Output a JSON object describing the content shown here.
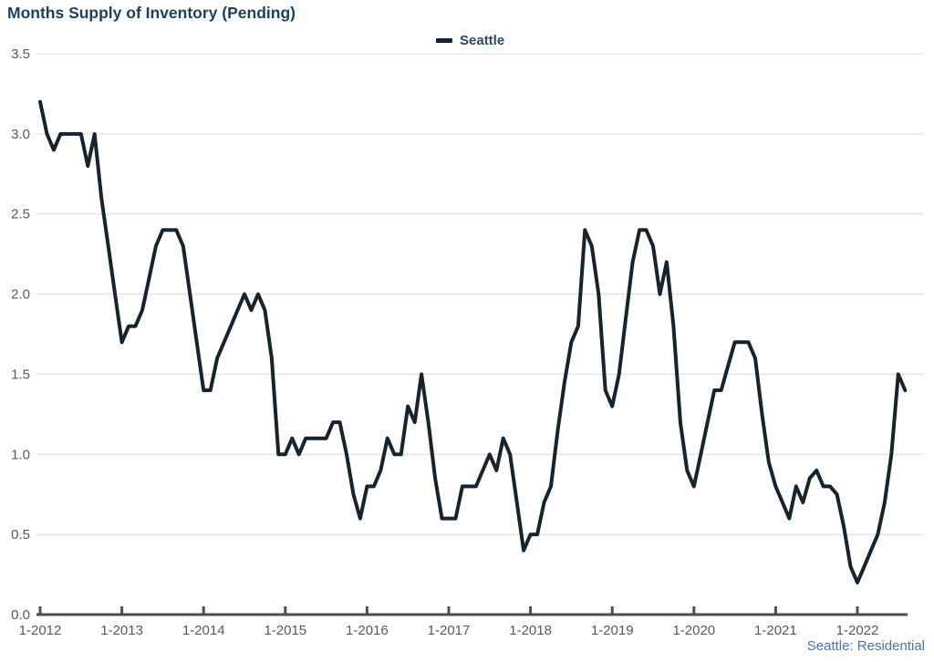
{
  "title": "Months Supply of Inventory (Pending)",
  "legend": {
    "label": "Seattle"
  },
  "footer": {
    "text": "Seattle: Residential"
  },
  "colors": {
    "title": "#1c4161",
    "legend_label": "#2c4b66",
    "line": "#16242e",
    "axis": "#4d4d4d",
    "grid": "#d9d9d9",
    "tick_label": "#595959",
    "footer": "#4377ac"
  },
  "chart_data": {
    "type": "line",
    "title": "Months Supply of Inventory (Pending)",
    "xlabel": "",
    "ylabel": "",
    "ylim": [
      0,
      3.5
    ],
    "y_tick_labels": [
      "0.0",
      "0.5",
      "1.0",
      "1.5",
      "2.0",
      "2.5",
      "3.0",
      "3.5"
    ],
    "x_tick_labels": [
      "1-2012",
      "1-2013",
      "1-2014",
      "1-2015",
      "1-2016",
      "1-2017",
      "1-2018",
      "1-2019",
      "1-2020",
      "1-2021",
      "1-2022"
    ],
    "x_tick_month_indices": [
      0,
      12,
      24,
      36,
      48,
      60,
      72,
      84,
      96,
      108,
      120
    ],
    "grid": "horizontal",
    "legend_position": "top-center",
    "series": [
      {
        "name": "Seattle",
        "start_month": "1-2012",
        "end_month": "8-2022",
        "frequency": "monthly",
        "values": [
          3.2,
          3.0,
          2.9,
          3.0,
          3.0,
          3.0,
          3.0,
          2.8,
          3.0,
          2.6,
          2.3,
          2.0,
          1.7,
          1.8,
          1.8,
          1.9,
          2.1,
          2.3,
          2.4,
          2.4,
          2.4,
          2.3,
          2.0,
          1.7,
          1.4,
          1.4,
          1.6,
          1.7,
          1.8,
          1.9,
          2.0,
          1.9,
          2.0,
          1.9,
          1.6,
          1.0,
          1.0,
          1.1,
          1.0,
          1.1,
          1.1,
          1.1,
          1.1,
          1.2,
          1.2,
          1.0,
          0.75,
          0.6,
          0.8,
          0.8,
          0.9,
          1.1,
          1.0,
          1.0,
          1.3,
          1.2,
          1.5,
          1.2,
          0.85,
          0.6,
          0.6,
          0.6,
          0.8,
          0.8,
          0.8,
          0.9,
          1.0,
          0.9,
          1.1,
          1.0,
          0.7,
          0.4,
          0.5,
          0.5,
          0.7,
          0.8,
          1.15,
          1.45,
          1.7,
          1.8,
          2.4,
          2.3,
          2.0,
          1.4,
          1.3,
          1.5,
          1.85,
          2.2,
          2.4,
          2.4,
          2.3,
          2.0,
          2.2,
          1.8,
          1.2,
          0.9,
          0.8,
          1.0,
          1.2,
          1.4,
          1.4,
          1.55,
          1.7,
          1.7,
          1.7,
          1.6,
          1.25,
          0.95,
          0.8,
          0.7,
          0.6,
          0.8,
          0.7,
          0.85,
          0.9,
          0.8,
          0.8,
          0.75,
          0.55,
          0.3,
          0.2,
          0.3,
          0.4,
          0.5,
          0.7,
          1.0,
          1.5,
          1.4
        ]
      }
    ]
  }
}
